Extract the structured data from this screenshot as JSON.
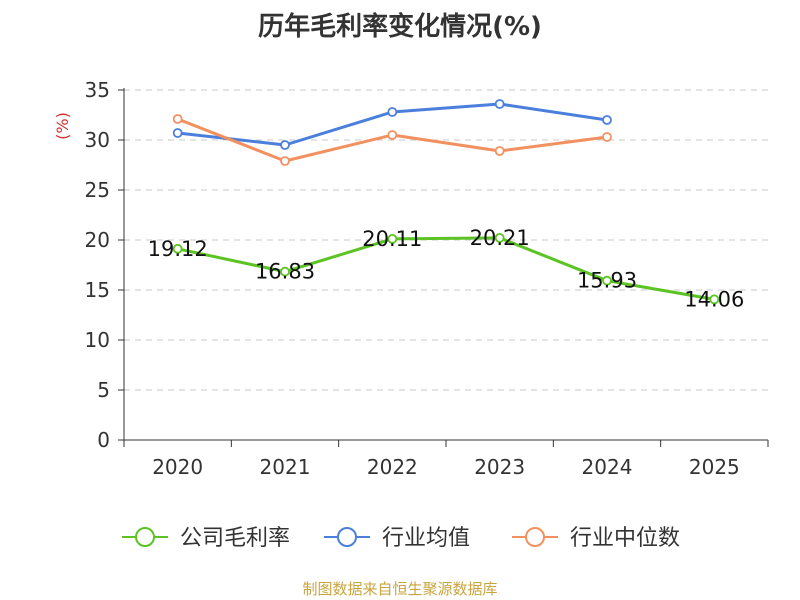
{
  "chart_data": {
    "type": "line",
    "title": "历年毛利率变化情况(%)",
    "ylabel": "(%)",
    "xlabel": "",
    "categories": [
      "2020",
      "2021",
      "2022",
      "2023",
      "2024",
      "2025"
    ],
    "ylim": [
      0,
      35
    ],
    "yticks": [
      0,
      5,
      10,
      15,
      20,
      25,
      30,
      35
    ],
    "grid": true,
    "legend_position": "bottom",
    "series": [
      {
        "name": "公司毛利率",
        "color": "#5bc424",
        "values": [
          19.12,
          16.83,
          20.11,
          20.21,
          15.93,
          14.06
        ],
        "labels": [
          "19.12",
          "16.83",
          "20.11",
          "20.21",
          "15.93",
          "14.06"
        ]
      },
      {
        "name": "行业均值",
        "color": "#4a7fdc",
        "values": [
          30.7,
          29.5,
          32.8,
          33.6,
          32.0,
          null
        ]
      },
      {
        "name": "行业中位数",
        "color": "#f39060",
        "values": [
          32.1,
          27.9,
          30.5,
          28.9,
          30.3,
          null
        ]
      }
    ]
  },
  "footer": {
    "source": "制图数据来自恒生聚源数据库"
  }
}
